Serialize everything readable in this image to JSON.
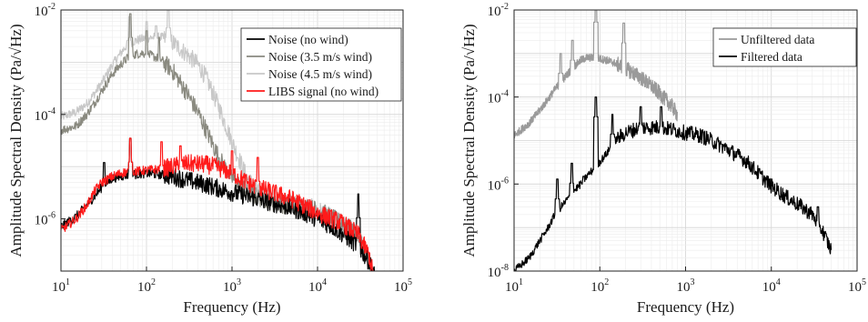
{
  "chart_data": [
    {
      "type": "line",
      "xscale": "log",
      "yscale": "log",
      "xlabel": "Frequency (Hz)",
      "ylabel": "Amplitude Spectral Density (Pa/√Hz)",
      "xlim": [
        10,
        100000
      ],
      "ylim": [
        1e-07,
        0.01
      ],
      "xticks": [
        {
          "base": "10",
          "exp": "1",
          "value": 10
        },
        {
          "base": "10",
          "exp": "2",
          "value": 100
        },
        {
          "base": "10",
          "exp": "3",
          "value": 1000
        },
        {
          "base": "10",
          "exp": "4",
          "value": 10000
        },
        {
          "base": "10",
          "exp": "5",
          "value": 100000
        }
      ],
      "yticks": [
        {
          "base": "10",
          "exp": "-6",
          "value": 1e-06
        },
        {
          "base": "10",
          "exp": "-4",
          "value": 0.0001
        },
        {
          "base": "10",
          "exp": "-2",
          "value": 0.01
        }
      ],
      "grid": true,
      "legend_position": "top-right",
      "series": [
        {
          "name": "Noise (4.5 m/s wind)",
          "color": "#c8c8c8",
          "x": [
            10,
            15,
            20,
            25,
            30,
            40,
            50,
            60,
            70,
            90,
            120,
            150,
            200,
            250,
            300,
            400,
            500,
            700,
            1000,
            1500,
            2000,
            2500,
            3000,
            4000,
            5000,
            7000,
            10000,
            20000,
            30000,
            50000
          ],
          "y": [
            9e-05,
            0.00011,
            0.00016,
            0.00026,
            0.0004,
            0.0009,
            0.0015,
            0.0022,
            0.0025,
            0.0028,
            0.003,
            0.003,
            0.0024,
            0.0018,
            0.0014,
            0.0009,
            0.0005,
            0.00014,
            3e-05,
            6e-06,
            3.5e-06,
            2.8e-06,
            2.5e-06,
            2.2e-06,
            2e-06,
            1.8e-06,
            1.5e-06,
            8e-07,
            5e-07,
            5e-08
          ],
          "peaks": [
            {
              "f": 63,
              "v": 0.0075
            },
            {
              "f": 100,
              "v": 0.006
            },
            {
              "f": 180,
              "v": 0.013
            },
            {
              "f": 130,
              "v": 0.005
            }
          ]
        },
        {
          "name": "Noise (3.5 m/s wind)",
          "color": "#8a8a80",
          "x": [
            10,
            15,
            20,
            25,
            30,
            40,
            50,
            60,
            70,
            90,
            120,
            150,
            200,
            250,
            300,
            400,
            500,
            700,
            1000,
            1500,
            2000,
            3000,
            5000,
            10000,
            20000,
            30000,
            50000
          ],
          "y": [
            5e-05,
            6e-05,
            0.0001,
            0.00017,
            0.00028,
            0.0006,
            0.0009,
            0.0012,
            0.0014,
            0.0015,
            0.0013,
            0.0011,
            0.0007,
            0.0004,
            0.00025,
            0.00011,
            5e-05,
            1.5e-05,
            6e-06,
            3.2e-06,
            2.6e-06,
            2e-06,
            1.8e-06,
            1.5e-06,
            8e-07,
            5e-07,
            5e-08
          ],
          "peaks": [
            {
              "f": 65,
              "v": 0.0085
            },
            {
              "f": 100,
              "v": 0.004
            },
            {
              "f": 140,
              "v": 0.003
            }
          ]
        },
        {
          "name": "Noise (no wind)",
          "color": "#000000",
          "x": [
            10,
            15,
            20,
            25,
            30,
            40,
            50,
            60,
            80,
            100,
            150,
            200,
            300,
            500,
            700,
            1000,
            1500,
            2000,
            3000,
            5000,
            7000,
            10000,
            15000,
            20000,
            30000,
            40000,
            50000
          ],
          "y": [
            7e-07,
            1.1e-06,
            1.8e-06,
            2.8e-06,
            4e-06,
            6e-06,
            6.5e-06,
            7e-06,
            7.2e-06,
            7.5e-06,
            7e-06,
            6.5e-06,
            5.5e-06,
            4.5e-06,
            3.8e-06,
            3.2e-06,
            2.7e-06,
            2.4e-06,
            2e-06,
            1.6e-06,
            1.3e-06,
            1e-06,
            7e-07,
            5e-07,
            3e-07,
            1.5e-07,
            6e-08
          ],
          "peaks": [
            {
              "f": 32,
              "v": 1.2e-05
            },
            {
              "f": 65,
              "v": 3.5e-05
            },
            {
              "f": 30000,
              "v": 3e-06
            }
          ]
        },
        {
          "name": "LIBS signal (no wind)",
          "color": "#ff1a1a",
          "x": [
            10,
            15,
            20,
            25,
            30,
            40,
            50,
            60,
            80,
            100,
            150,
            200,
            300,
            500,
            700,
            1000,
            1500,
            2000,
            3000,
            5000,
            7000,
            10000,
            15000,
            20000,
            30000,
            40000,
            50000
          ],
          "y": [
            6e-07,
            1e-06,
            1.8e-06,
            3.5e-06,
            5e-06,
            6.5e-06,
            7.5e-06,
            8e-06,
            8.2e-06,
            8.5e-06,
            9e-06,
            1e-05,
            1.15e-05,
            1.1e-05,
            9.5e-06,
            7.5e-06,
            5e-06,
            4e-06,
            3.2e-06,
            2.4e-06,
            1.8e-06,
            1.3e-06,
            1e-06,
            8e-07,
            5e-07,
            2e-07,
            4e-08
          ],
          "peaks": [
            {
              "f": 65,
              "v": 3.5e-05
            },
            {
              "f": 150,
              "v": 3e-05
            },
            {
              "f": 250,
              "v": 2.5e-05
            },
            {
              "f": 1000,
              "v": 2e-05
            },
            {
              "f": 2000,
              "v": 1.5e-05
            }
          ]
        }
      ]
    },
    {
      "type": "line",
      "xscale": "log",
      "yscale": "log",
      "xlabel": "Frequency (Hz)",
      "ylabel": "Amplitude Spectral Density (Pa/√Hz)",
      "xlim": [
        10,
        100000
      ],
      "ylim": [
        1e-08,
        0.01
      ],
      "xticks": [
        {
          "base": "10",
          "exp": "1",
          "value": 10
        },
        {
          "base": "10",
          "exp": "2",
          "value": 100
        },
        {
          "base": "10",
          "exp": "3",
          "value": 1000
        },
        {
          "base": "10",
          "exp": "4",
          "value": 10000
        },
        {
          "base": "10",
          "exp": "5",
          "value": 100000
        }
      ],
      "yticks": [
        {
          "base": "10",
          "exp": "-8",
          "value": 1e-08
        },
        {
          "base": "10",
          "exp": "-6",
          "value": 1e-06
        },
        {
          "base": "10",
          "exp": "-4",
          "value": 0.0001
        },
        {
          "base": "10",
          "exp": "-2",
          "value": 0.01
        }
      ],
      "grid": true,
      "legend_position": "top-right",
      "series": [
        {
          "name": "Unfiltered data",
          "color": "#9a9a9a",
          "x": [
            10,
            15,
            20,
            25,
            30,
            40,
            50,
            60,
            70,
            90,
            120,
            150,
            200,
            250,
            300,
            400,
            500,
            700,
            800
          ],
          "y": [
            1.3e-05,
            2.5e-05,
            5e-05,
            9e-05,
            0.00015,
            0.0003,
            0.0005,
            0.0007,
            0.0008,
            0.0008,
            0.0007,
            0.0006,
            0.00045,
            0.00035,
            0.00028,
            0.00018,
            0.00012,
            6e-05,
            4e-05
          ],
          "peaks": [
            {
              "f": 35,
              "v": 0.001
            },
            {
              "f": 48,
              "v": 0.002
            },
            {
              "f": 90,
              "v": 0.015
            },
            {
              "f": 190,
              "v": 0.005
            }
          ]
        },
        {
          "name": "Filtered data",
          "color": "#000000",
          "x": [
            10,
            15,
            20,
            25,
            30,
            40,
            50,
            60,
            70,
            90,
            120,
            150,
            200,
            300,
            500,
            700,
            1000,
            1500,
            2000,
            3000,
            5000,
            7000,
            10000,
            15000,
            20000,
            30000,
            40000,
            50000
          ],
          "y": [
            1e-08,
            2e-08,
            5e-08,
            1e-07,
            2e-07,
            4e-07,
            7e-07,
            1e-06,
            1.5e-06,
            2.5e-06,
            5e-06,
            1e-05,
            1.5e-05,
            2e-05,
            2e-05,
            1.8e-05,
            1.5e-05,
            1.3e-05,
            1e-05,
            6.5e-06,
            3.5e-06,
            1.8e-06,
            9e-07,
            5e-07,
            3.5e-07,
            2e-07,
            8e-08,
            3e-08
          ],
          "peaks": [
            {
              "f": 32,
              "v": 1.3e-06
            },
            {
              "f": 47,
              "v": 3e-06
            },
            {
              "f": 65,
              "v": 1.5e-06
            },
            {
              "f": 90,
              "v": 0.0001
            },
            {
              "f": 140,
              "v": 4e-05
            },
            {
              "f": 300,
              "v": 6e-05
            },
            {
              "f": 520,
              "v": 6e-05
            },
            {
              "f": 35000,
              "v": 3e-07
            }
          ]
        }
      ]
    }
  ]
}
